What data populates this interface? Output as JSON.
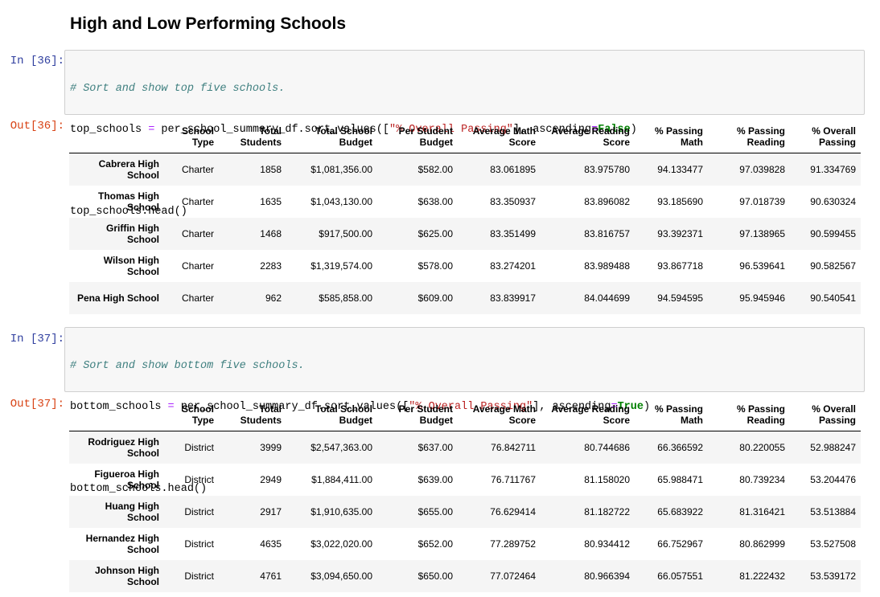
{
  "heading": "High and Low Performing Schools",
  "columns": [
    "School Type",
    "Total Students",
    "Total School Budget",
    "Per Student Budget",
    "Average Math Score",
    "Average Reading Score",
    "% Passing Math",
    "% Passing Reading",
    "% Overall Passing"
  ],
  "cells": [
    {
      "in_prompt": "In [36]:",
      "out_prompt": "Out[36]:",
      "code": {
        "comment": "# Sort and show top five schools.",
        "var": "top_schools ",
        "eq": "=",
        "call": " per_school_summary_df.sort_values([",
        "str": "\"% Overall Passing\"",
        "mid": "], ascending",
        "eq2": "=",
        "kw": "False",
        "end": ")",
        "line3": "top_schools.head()"
      },
      "rows": [
        {
          "name": "Cabrera High School",
          "values": [
            "Charter",
            "1858",
            "$1,081,356.00",
            "$582.00",
            "83.061895",
            "83.975780",
            "94.133477",
            "97.039828",
            "91.334769"
          ]
        },
        {
          "name": "Thomas High School",
          "values": [
            "Charter",
            "1635",
            "$1,043,130.00",
            "$638.00",
            "83.350937",
            "83.896082",
            "93.185690",
            "97.018739",
            "90.630324"
          ]
        },
        {
          "name": "Griffin High School",
          "values": [
            "Charter",
            "1468",
            "$917,500.00",
            "$625.00",
            "83.351499",
            "83.816757",
            "93.392371",
            "97.138965",
            "90.599455"
          ]
        },
        {
          "name": "Wilson High School",
          "values": [
            "Charter",
            "2283",
            "$1,319,574.00",
            "$578.00",
            "83.274201",
            "83.989488",
            "93.867718",
            "96.539641",
            "90.582567"
          ]
        },
        {
          "name": "Pena High School",
          "values": [
            "Charter",
            "962",
            "$585,858.00",
            "$609.00",
            "83.839917",
            "84.044699",
            "94.594595",
            "95.945946",
            "90.540541"
          ]
        }
      ]
    },
    {
      "in_prompt": "In [37]:",
      "out_prompt": "Out[37]:",
      "code": {
        "comment": "# Sort and show bottom five schools.",
        "var": "bottom_schools ",
        "eq": "=",
        "call": " per_school_summary_df.sort_values([",
        "str": "\"% Overall Passing\"",
        "mid": "], ascending",
        "eq2": "=",
        "kw": "True",
        "end": ")",
        "line3": "bottom_schools.head()"
      },
      "rows": [
        {
          "name": "Rodriguez High School",
          "values": [
            "District",
            "3999",
            "$2,547,363.00",
            "$637.00",
            "76.842711",
            "80.744686",
            "66.366592",
            "80.220055",
            "52.988247"
          ]
        },
        {
          "name": "Figueroa High School",
          "values": [
            "District",
            "2949",
            "$1,884,411.00",
            "$639.00",
            "76.711767",
            "81.158020",
            "65.988471",
            "80.739234",
            "53.204476"
          ]
        },
        {
          "name": "Huang High School",
          "values": [
            "District",
            "2917",
            "$1,910,635.00",
            "$655.00",
            "76.629414",
            "81.182722",
            "65.683922",
            "81.316421",
            "53.513884"
          ]
        },
        {
          "name": "Hernandez High School",
          "values": [
            "District",
            "4635",
            "$3,022,020.00",
            "$652.00",
            "77.289752",
            "80.934412",
            "66.752967",
            "80.862999",
            "53.527508"
          ]
        },
        {
          "name": "Johnson High School",
          "values": [
            "District",
            "4761",
            "$3,094,650.00",
            "$650.00",
            "77.072464",
            "80.966394",
            "66.057551",
            "81.222432",
            "53.539172"
          ]
        }
      ]
    }
  ]
}
